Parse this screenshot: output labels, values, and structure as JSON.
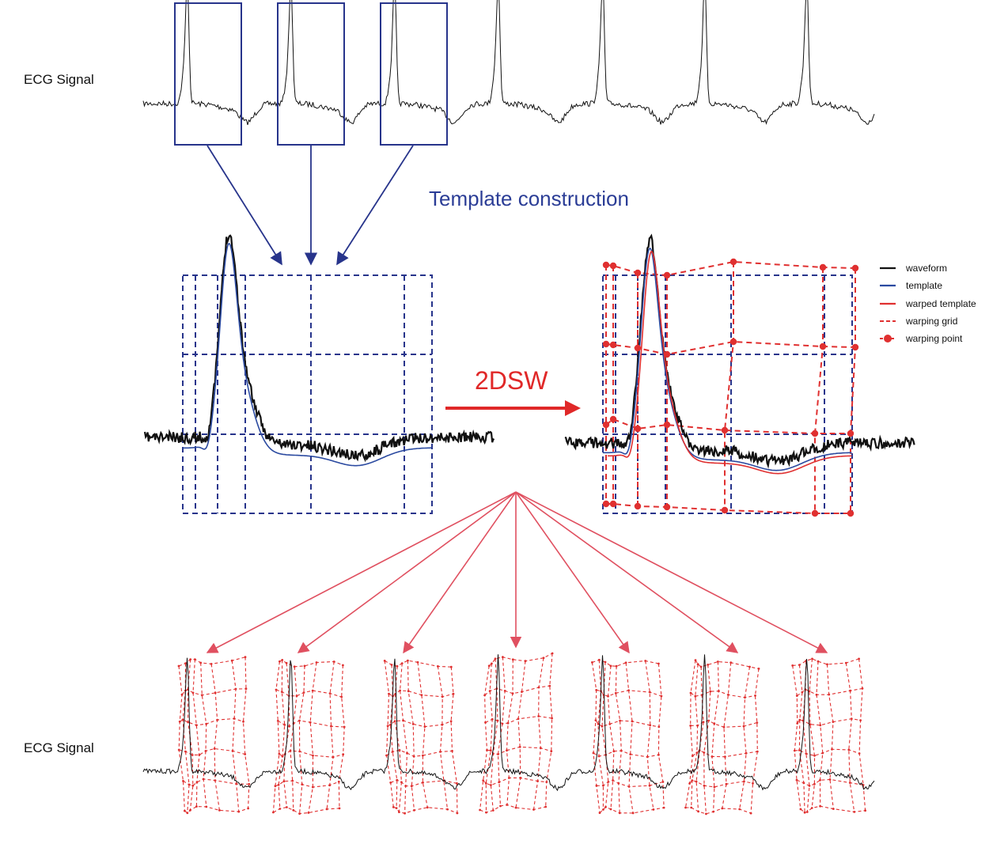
{
  "labels": {
    "ecg_top": "ECG Signal",
    "ecg_bottom": "ECG Signal",
    "template_construction": "Template construction",
    "method": "2DSW"
  },
  "legend": [
    {
      "key": "waveform",
      "label": "waveform",
      "color": "#111111",
      "style": "solid"
    },
    {
      "key": "template",
      "label": "template",
      "color": "#2b4aa0",
      "style": "solid"
    },
    {
      "key": "warped_template",
      "label": "warped template",
      "color": "#e03030",
      "style": "solid"
    },
    {
      "key": "warping_grid",
      "label": "warping grid",
      "color": "#e03030",
      "style": "dashed"
    },
    {
      "key": "warping_point",
      "label": "warping point",
      "color": "#e03030",
      "style": "point"
    }
  ],
  "colors": {
    "signal": "#111111",
    "template": "#2b4aa0",
    "grid_blue": "#27348b",
    "warp_red": "#e03030",
    "arrow_pink": "#e05060"
  }
}
